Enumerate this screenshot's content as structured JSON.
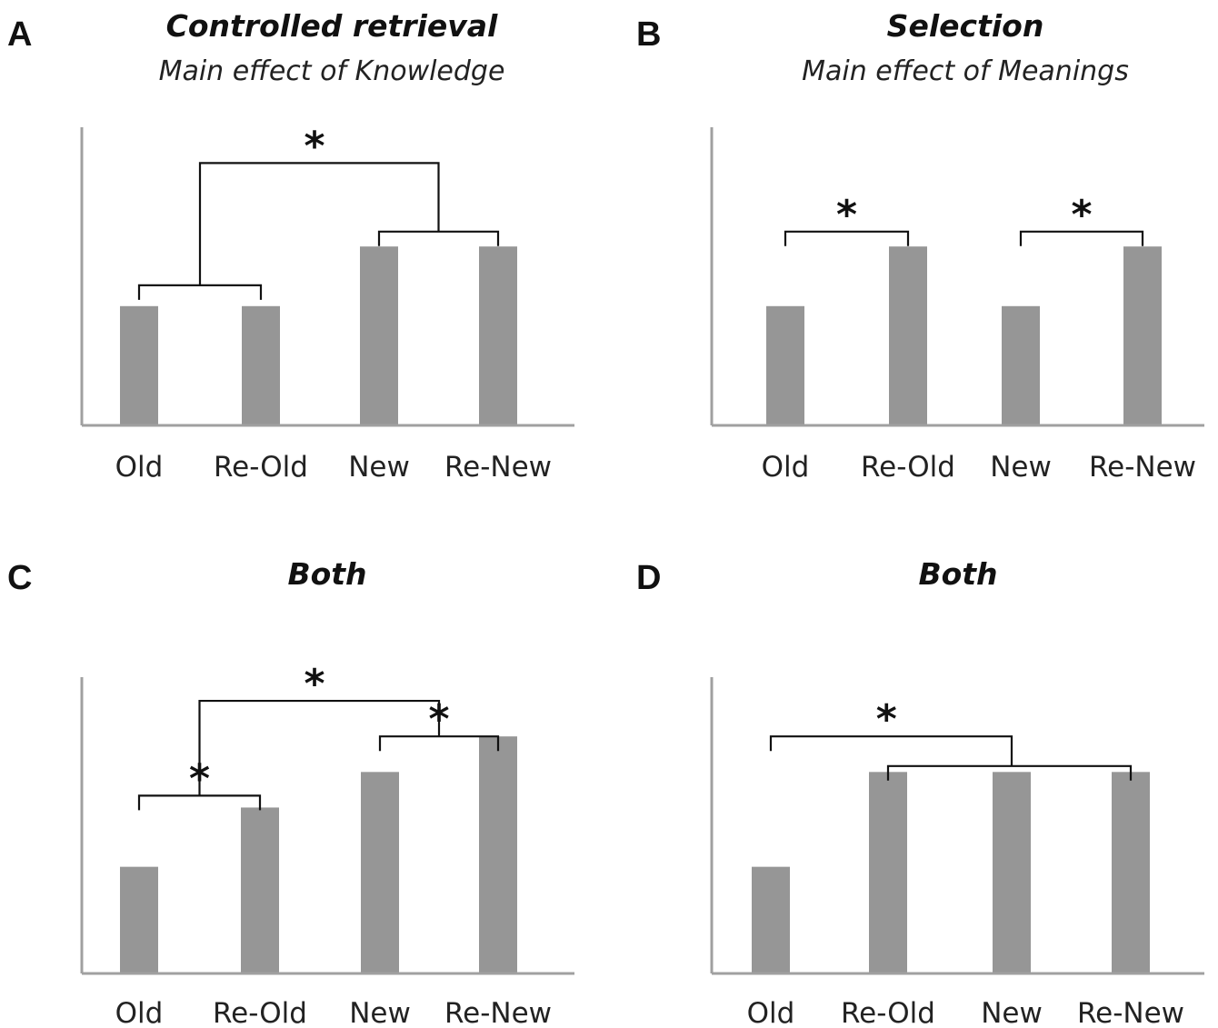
{
  "chart_data": [
    {
      "type": "bar",
      "panel_label": "A",
      "title": "Controlled retrieval",
      "subtitle": "Main effect of Knowledge",
      "categories": [
        "Old",
        "Re-Old",
        "New",
        "Re-New"
      ],
      "values": [
        2,
        2,
        3,
        3
      ],
      "ylim": [
        0,
        5
      ],
      "color": "#969696",
      "annotations": [
        {
          "type": "bracket",
          "from": 0,
          "to": 1,
          "label": ""
        },
        {
          "type": "bracket",
          "from": 2,
          "to": 3,
          "label": ""
        },
        {
          "type": "bracket",
          "from": 0.5,
          "to": 2.5,
          "label": "*"
        }
      ]
    },
    {
      "type": "bar",
      "panel_label": "B",
      "title": "Selection",
      "subtitle": "Main effect of Meanings",
      "categories": [
        "Old",
        "Re-Old",
        "New",
        "Re-New"
      ],
      "values": [
        2,
        3,
        2,
        3
      ],
      "ylim": [
        0,
        5
      ],
      "color": "#969696",
      "annotations": [
        {
          "type": "bracket",
          "from": 0,
          "to": 1,
          "label": "*"
        },
        {
          "type": "bracket",
          "from": 2,
          "to": 3,
          "label": "*"
        }
      ]
    },
    {
      "type": "bar",
      "panel_label": "C",
      "title": "Both",
      "subtitle": "",
      "categories": [
        "Old",
        "Re-Old",
        "New",
        "Re-New"
      ],
      "values": [
        1.8,
        2.8,
        3.4,
        4.0
      ],
      "ylim": [
        0,
        5
      ],
      "color": "#969696",
      "annotations": [
        {
          "type": "bracket",
          "from": 0,
          "to": 1,
          "label": "*"
        },
        {
          "type": "bracket",
          "from": 2,
          "to": 3,
          "label": "*"
        },
        {
          "type": "bracket",
          "from": 0.5,
          "to": 2.5,
          "label": "*"
        }
      ]
    },
    {
      "type": "bar",
      "panel_label": "D",
      "title": "Both",
      "subtitle": "",
      "categories": [
        "Old",
        "Re-Old",
        "New",
        "Re-New"
      ],
      "values": [
        1.8,
        3.4,
        3.4,
        3.4
      ],
      "ylim": [
        0,
        5
      ],
      "color": "#969696",
      "annotations": [
        {
          "type": "bracket",
          "from": 1,
          "to": 3,
          "label": ""
        },
        {
          "type": "bracket",
          "from": 0,
          "to": 2,
          "label": "*"
        }
      ]
    }
  ]
}
